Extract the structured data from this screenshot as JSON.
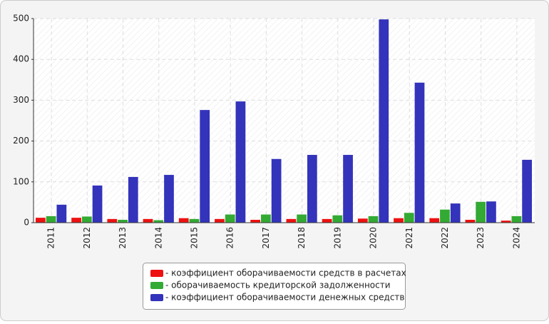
{
  "chart_data": {
    "type": "bar",
    "categories": [
      "2011",
      "2012",
      "2013",
      "2014",
      "2015",
      "2016",
      "2017",
      "2018",
      "2019",
      "2020",
      "2021",
      "2022",
      "2023",
      "2024"
    ],
    "series": [
      {
        "name": "- коэффициент оборачиваемости средств в расчетах",
        "color": "#ee1111",
        "values": [
          12,
          12,
          9,
          9,
          11,
          9,
          7,
          9,
          9,
          10,
          11,
          11,
          7,
          5
        ]
      },
      {
        "name": "- оборачиваемость кредиторской задолженности",
        "color": "#33aa33",
        "values": [
          16,
          15,
          7,
          6,
          9,
          20,
          20,
          20,
          18,
          16,
          24,
          32,
          51,
          16
        ]
      },
      {
        "name": "- коэффициент оборачиваемости денежных средств",
        "color": "#3333bb",
        "values": [
          44,
          91,
          112,
          117,
          276,
          297,
          156,
          166,
          166,
          498,
          343,
          47,
          52,
          154
        ]
      }
    ],
    "ylim": [
      0,
      500
    ],
    "yticks": [
      0,
      100,
      200,
      300,
      400,
      500
    ],
    "grid": true,
    "legend": "bottom"
  }
}
